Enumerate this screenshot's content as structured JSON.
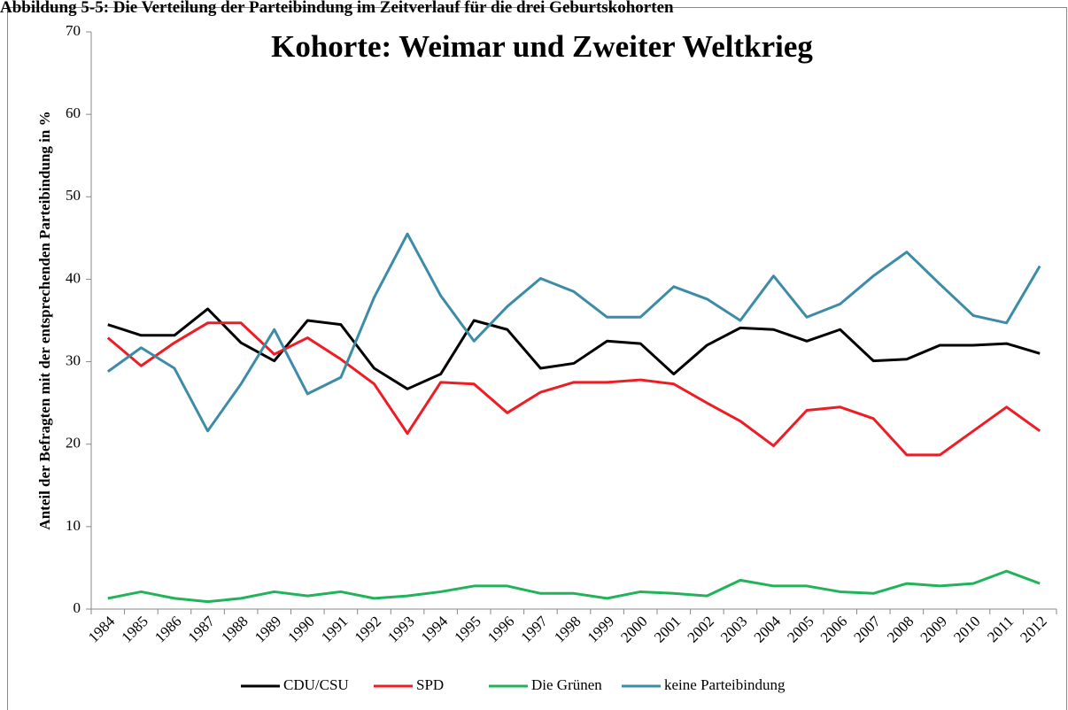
{
  "chart_data": {
    "type": "line",
    "caption": "Abbildung 5-5: Die Verteilung der Parteibindung im Zeitverlauf für die drei Geburtskohorten",
    "title": "Kohorte: Weimar und Zweiter Weltkrieg",
    "ylabel": "Anteil der Befragten mit der entsprechenden Parteibindung in %",
    "categories": [
      "1984",
      "1985",
      "1986",
      "1987",
      "1988",
      "1989",
      "1990",
      "1991",
      "1992",
      "1993",
      "1994",
      "1995",
      "1996",
      "1997",
      "1998",
      "1999",
      "2000",
      "2001",
      "2002",
      "2003",
      "2004",
      "2005",
      "2006",
      "2007",
      "2008",
      "2009",
      "2010",
      "2011",
      "2012"
    ],
    "series": [
      {
        "name": "CDU/CSU",
        "color": "#000000",
        "values": [
          34.5,
          33.2,
          33.2,
          36.4,
          32.3,
          30.1,
          35.0,
          34.5,
          29.2,
          26.7,
          28.5,
          35.0,
          33.9,
          29.2,
          29.8,
          32.5,
          32.2,
          28.5,
          32.0,
          34.1,
          33.9,
          32.5,
          33.9,
          30.1,
          30.3,
          32.0,
          32.0,
          32.2,
          31.0
        ]
      },
      {
        "name": "SPD",
        "color": "#ee1c25",
        "values": [
          32.9,
          29.5,
          32.3,
          34.7,
          34.7,
          30.9,
          32.9,
          30.3,
          27.3,
          21.3,
          27.5,
          27.3,
          23.8,
          26.3,
          27.5,
          27.5,
          27.8,
          27.3,
          25.0,
          22.8,
          19.8,
          24.1,
          24.5,
          23.1,
          18.7,
          18.7,
          21.6,
          24.5,
          21.6
        ]
      },
      {
        "name": "Die Grünen",
        "color": "#21b35a",
        "values": [
          1.3,
          2.1,
          1.3,
          0.9,
          1.3,
          2.1,
          1.6,
          2.1,
          1.3,
          1.6,
          2.1,
          2.8,
          2.8,
          1.9,
          1.9,
          1.3,
          2.1,
          1.9,
          1.6,
          3.5,
          2.8,
          2.8,
          2.1,
          1.9,
          3.1,
          2.8,
          3.1,
          4.6,
          3.1
        ]
      },
      {
        "name": "keine Parteibindung",
        "color": "#3c8ca8",
        "values": [
          28.8,
          31.7,
          29.2,
          21.6,
          27.3,
          33.9,
          26.1,
          28.1,
          37.8,
          45.5,
          38.0,
          32.5,
          36.7,
          40.1,
          38.5,
          35.4,
          35.4,
          39.1,
          37.6,
          35.0,
          40.4,
          35.4,
          37.0,
          40.4,
          43.3,
          39.4,
          35.6,
          34.7,
          41.6
        ]
      }
    ],
    "ylim": [
      0,
      70
    ],
    "yticks": [
      0,
      10,
      20,
      30,
      40,
      50,
      60,
      70
    ],
    "grid": false,
    "legend": "bottom"
  }
}
